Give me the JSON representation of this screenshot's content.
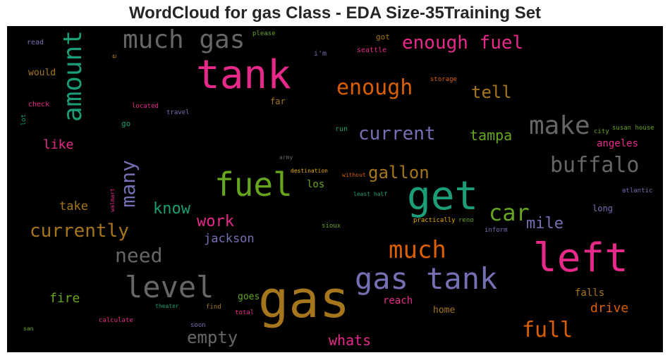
{
  "title": "WordCloud for gas Class - EDA Size-35Training Set",
  "colors": {
    "background": "#000000",
    "pink": "#e7298a",
    "green": "#1b9e77",
    "orange": "#d95f02",
    "purple": "#7570b3",
    "lime": "#66a61e",
    "gold": "#a6761d",
    "yellow": "#e6ab02",
    "gray": "#666666"
  },
  "words": [
    {
      "text": "gas",
      "color": "#a6761d"
    },
    {
      "text": "tank",
      "color": "#e7298a"
    },
    {
      "text": "left",
      "color": "#e7298a"
    },
    {
      "text": "get",
      "color": "#1b9e77"
    },
    {
      "text": "fuel",
      "color": "#66a61e"
    },
    {
      "text": "gas tank",
      "color": "#7570b3"
    },
    {
      "text": "much gas",
      "color": "#666666"
    },
    {
      "text": "level",
      "color": "#666666"
    },
    {
      "text": "amount",
      "color": "#1b9e77"
    },
    {
      "text": "make",
      "color": "#666666"
    },
    {
      "text": "much",
      "color": "#d95f02"
    },
    {
      "text": "buffalo",
      "color": "#666666"
    },
    {
      "text": "enough",
      "color": "#d95f02"
    },
    {
      "text": "enough fuel",
      "color": "#e7298a"
    },
    {
      "text": "car",
      "color": "#66a61e"
    },
    {
      "text": "full",
      "color": "#d95f02"
    },
    {
      "text": "current",
      "color": "#7570b3"
    },
    {
      "text": "currently",
      "color": "#a6761d"
    },
    {
      "text": "need",
      "color": "#666666"
    },
    {
      "text": "many",
      "color": "#7570b3"
    },
    {
      "text": "tell",
      "color": "#a6761d"
    },
    {
      "text": "gallon",
      "color": "#a6761d"
    },
    {
      "text": "empty",
      "color": "#666666"
    },
    {
      "text": "whats",
      "color": "#e7298a"
    },
    {
      "text": "work",
      "color": "#e7298a"
    },
    {
      "text": "know",
      "color": "#1b9e77"
    },
    {
      "text": "mile",
      "color": "#7570b3"
    },
    {
      "text": "tampa",
      "color": "#66a61e"
    },
    {
      "text": "like",
      "color": "#e7298a"
    },
    {
      "text": "take",
      "color": "#a6761d"
    },
    {
      "text": "fire",
      "color": "#66a61e"
    },
    {
      "text": "drive",
      "color": "#d95f02"
    },
    {
      "text": "jackson",
      "color": "#7570b3"
    },
    {
      "text": "reach",
      "color": "#e7298a"
    },
    {
      "text": "los",
      "color": "#66a61e"
    },
    {
      "text": "angeles",
      "color": "#e7298a"
    },
    {
      "text": "falls",
      "color": "#a6761d"
    },
    {
      "text": "home",
      "color": "#a6761d"
    },
    {
      "text": "goes",
      "color": "#66a61e"
    },
    {
      "text": "long",
      "color": "#7570b3"
    },
    {
      "text": "would",
      "color": "#a6761d"
    },
    {
      "text": "read",
      "color": "#7570b3"
    },
    {
      "text": "please",
      "color": "#66a61e"
    },
    {
      "text": "got",
      "color": "#a6761d"
    },
    {
      "text": "seattle",
      "color": "#e7298a"
    },
    {
      "text": "i'm",
      "color": "#7570b3"
    },
    {
      "text": "e",
      "color": "#a6761d"
    },
    {
      "text": "storage",
      "color": "#d95f02"
    },
    {
      "text": "check",
      "color": "#e7298a"
    },
    {
      "text": "located",
      "color": "#e7298a"
    },
    {
      "text": "travel",
      "color": "#7570b3"
    },
    {
      "text": "far",
      "color": "#a6761d"
    },
    {
      "text": "lot",
      "color": "#1b9e77"
    },
    {
      "text": "go",
      "color": "#1b9e77"
    },
    {
      "text": "run",
      "color": "#1b9e77"
    },
    {
      "text": "city",
      "color": "#66a61e"
    },
    {
      "text": "susan house",
      "color": "#66a61e"
    },
    {
      "text": "army",
      "color": "#666666"
    },
    {
      "text": "destination",
      "color": "#e6ab02"
    },
    {
      "text": "without",
      "color": "#d95f02"
    },
    {
      "text": "least half",
      "color": "#1b9e77"
    },
    {
      "text": "walmart",
      "color": "#e7298a"
    },
    {
      "text": "atlantic",
      "color": "#7570b3"
    },
    {
      "text": "sioux",
      "color": "#66a61e"
    },
    {
      "text": "practically",
      "color": "#e6ab02"
    },
    {
      "text": "reno",
      "color": "#66a61e"
    },
    {
      "text": "inform",
      "color": "#7570b3"
    },
    {
      "text": "theater",
      "color": "#1b9e77"
    },
    {
      "text": "find",
      "color": "#a6761d"
    },
    {
      "text": "total",
      "color": "#e7298a"
    },
    {
      "text": "calculate",
      "color": "#e7298a"
    },
    {
      "text": "soon",
      "color": "#7570b3"
    },
    {
      "text": "san",
      "color": "#66a61e"
    }
  ]
}
